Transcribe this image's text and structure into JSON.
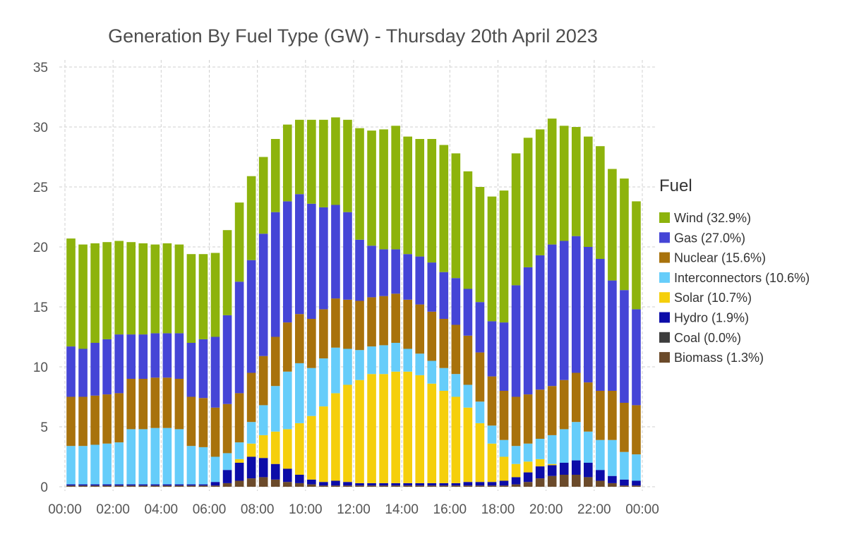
{
  "chart_data": {
    "type": "bar",
    "stacked": true,
    "title": "Generation By Fuel Type (GW) - Thursday 20th April 2023",
    "xlabel": "",
    "ylabel": "",
    "ylim": [
      0,
      35
    ],
    "yticks": [
      "0",
      "5",
      "10",
      "15",
      "20",
      "25",
      "30",
      "35"
    ],
    "xticks": [
      "00:00",
      "02:00",
      "04:00",
      "06:00",
      "08:00",
      "10:00",
      "12:00",
      "14:00",
      "16:00",
      "18:00",
      "20:00",
      "22:00",
      "00:00"
    ],
    "grid": true,
    "legend_position": "right",
    "legend_title": "Fuel",
    "categories": [
      "00:00",
      "00:30",
      "01:00",
      "01:30",
      "02:00",
      "02:30",
      "03:00",
      "03:30",
      "04:00",
      "04:30",
      "05:00",
      "05:30",
      "06:00",
      "06:30",
      "07:00",
      "07:30",
      "08:00",
      "08:30",
      "09:00",
      "09:30",
      "10:00",
      "10:30",
      "11:00",
      "11:30",
      "12:00",
      "12:30",
      "13:00",
      "13:30",
      "14:00",
      "14:30",
      "15:00",
      "15:30",
      "16:00",
      "16:30",
      "17:00",
      "17:30",
      "18:00",
      "18:30",
      "19:00",
      "19:30",
      "20:00",
      "20:30",
      "21:00",
      "21:30",
      "22:00",
      "22:30",
      "23:00",
      "23:30"
    ],
    "series": [
      {
        "name": "Biomass (1.3%)",
        "color": "#6b4a2a",
        "values": [
          0.1,
          0.1,
          0.1,
          0.1,
          0.1,
          0.1,
          0.1,
          0.1,
          0.1,
          0.1,
          0.1,
          0.1,
          0.1,
          0.3,
          0.5,
          0.7,
          0.8,
          0.6,
          0.4,
          0.3,
          0.2,
          0.1,
          0.1,
          0.1,
          0.1,
          0.1,
          0.1,
          0.1,
          0.1,
          0.1,
          0.1,
          0.1,
          0.1,
          0.1,
          0.1,
          0.1,
          0.1,
          0.2,
          0.4,
          0.7,
          0.9,
          1.0,
          1.0,
          0.8,
          0.5,
          0.3,
          0.1,
          0.1
        ]
      },
      {
        "name": "Coal (0.0%)",
        "color": "#3d3d3d",
        "values": [
          0,
          0,
          0,
          0,
          0,
          0,
          0,
          0,
          0,
          0,
          0,
          0,
          0,
          0,
          0,
          0,
          0,
          0,
          0,
          0,
          0,
          0,
          0,
          0,
          0,
          0,
          0,
          0,
          0,
          0,
          0,
          0,
          0,
          0,
          0,
          0,
          0,
          0,
          0,
          0,
          0,
          0,
          0,
          0,
          0,
          0,
          0,
          0
        ]
      },
      {
        "name": "Hydro (1.9%)",
        "color": "#0c0ca8",
        "values": [
          0.1,
          0.1,
          0.1,
          0.1,
          0.1,
          0.1,
          0.1,
          0.1,
          0.1,
          0.1,
          0.1,
          0.1,
          0.3,
          1.1,
          1.5,
          1.8,
          1.6,
          1.3,
          1.1,
          0.7,
          0.4,
          0.3,
          0.4,
          0.3,
          0.2,
          0.2,
          0.2,
          0.2,
          0.2,
          0.2,
          0.2,
          0.2,
          0.2,
          0.3,
          0.3,
          0.3,
          0.4,
          0.6,
          0.8,
          1.0,
          0.9,
          1.0,
          1.2,
          1.2,
          0.9,
          0.6,
          0.5,
          0.4
        ]
      },
      {
        "name": "Solar (10.7%)",
        "color": "#f5cf0c",
        "values": [
          0,
          0,
          0,
          0,
          0,
          0,
          0,
          0,
          0,
          0,
          0,
          0,
          0,
          0,
          0.3,
          1.1,
          1.9,
          2.7,
          3.3,
          4.3,
          5.3,
          6.3,
          7.3,
          8.1,
          8.6,
          9.1,
          9.1,
          9.3,
          9.3,
          9.0,
          8.3,
          7.7,
          7.2,
          6.2,
          4.9,
          3.2,
          2.0,
          1.1,
          0.9,
          0.6,
          0.1,
          0,
          0,
          0,
          0,
          0,
          0,
          0
        ]
      },
      {
        "name": "Interconnectors (10.6%)",
        "color": "#66cdfa",
        "values": [
          3.2,
          3.2,
          3.3,
          3.4,
          3.5,
          4.6,
          4.6,
          4.7,
          4.7,
          4.6,
          3.2,
          3.1,
          2.1,
          1.4,
          1.4,
          1.8,
          2.5,
          3.8,
          4.8,
          5.0,
          4.0,
          4.0,
          3.8,
          3.0,
          2.5,
          2.3,
          2.4,
          2.4,
          1.9,
          1.8,
          1.9,
          1.9,
          1.9,
          1.9,
          1.8,
          1.5,
          1.4,
          1.5,
          1.5,
          1.7,
          2.4,
          2.8,
          3.2,
          2.6,
          2.5,
          3.0,
          2.3,
          2.2
        ]
      },
      {
        "name": "Nuclear (15.6%)",
        "color": "#a8720c",
        "values": [
          4.1,
          4.1,
          4.1,
          4.1,
          4.1,
          4.2,
          4.2,
          4.2,
          4.2,
          4.2,
          4.1,
          4.1,
          4.1,
          4.1,
          4.1,
          4.1,
          4.1,
          4.1,
          4.1,
          4.1,
          4.1,
          4.1,
          4.1,
          4.1,
          4.1,
          4.1,
          4.1,
          4.1,
          4.1,
          4.1,
          4.1,
          4.1,
          4.1,
          4.1,
          4.1,
          4.1,
          4.1,
          4.1,
          4.1,
          4.1,
          4.1,
          4.1,
          4.1,
          4.1,
          4.1,
          4.1,
          4.1,
          4.1
        ]
      },
      {
        "name": "Gas (27.0%)",
        "color": "#4545d6",
        "values": [
          4.2,
          4.0,
          4.4,
          4.6,
          4.9,
          3.7,
          3.7,
          3.7,
          3.7,
          3.8,
          4.5,
          4.9,
          5.9,
          7.4,
          9.3,
          9.4,
          10.2,
          10.4,
          10.1,
          10.0,
          9.6,
          8.5,
          7.8,
          7.3,
          5.1,
          4.3,
          3.9,
          3.7,
          3.8,
          4.0,
          4.1,
          3.9,
          3.9,
          3.9,
          4.2,
          4.6,
          5.7,
          9.3,
          10.6,
          11.2,
          11.8,
          11.6,
          11.4,
          11.3,
          11.0,
          9.2,
          9.4,
          8.0
        ]
      },
      {
        "name": "Wind (32.9%)",
        "color": "#8db30c",
        "values": [
          9.0,
          8.7,
          8.3,
          8.1,
          7.8,
          7.7,
          7.6,
          7.4,
          7.5,
          7.4,
          7.4,
          7.1,
          7.0,
          7.1,
          6.6,
          7.0,
          6.4,
          6.1,
          6.4,
          6.2,
          7.0,
          7.3,
          7.3,
          7.7,
          9.3,
          9.6,
          10.0,
          10.3,
          9.8,
          9.8,
          10.3,
          10.6,
          10.4,
          9.8,
          9.6,
          10.4,
          11.0,
          11.0,
          10.8,
          10.5,
          10.5,
          9.6,
          9.1,
          9.2,
          9.4,
          9.3,
          9.3,
          9.0
        ]
      }
    ]
  }
}
